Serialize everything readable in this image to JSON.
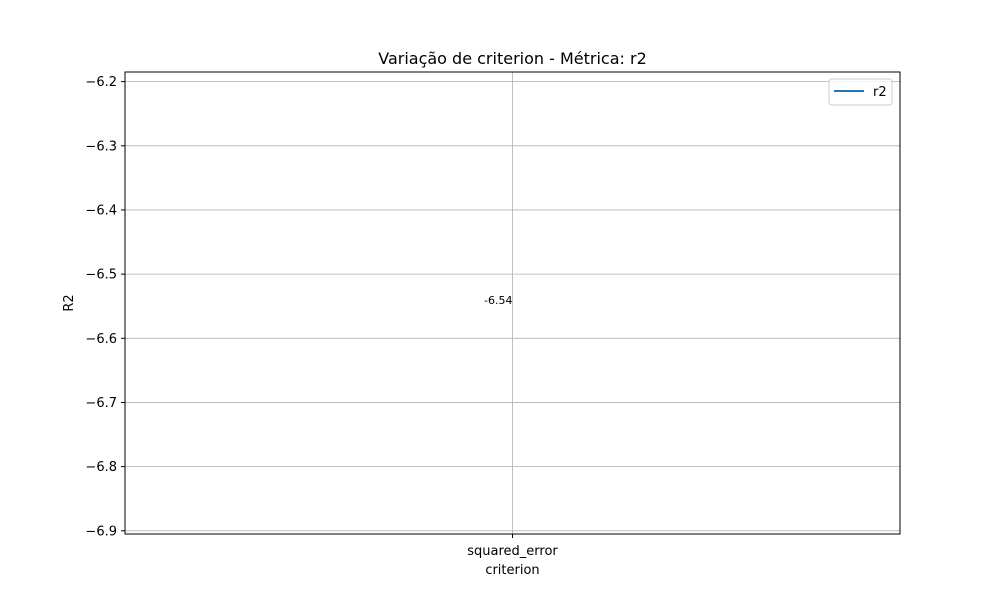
{
  "chart_data": {
    "type": "line",
    "title": "Variação de criterion - Métrica: r2",
    "xlabel": "criterion",
    "ylabel": "R2",
    "categories": [
      "squared_error"
    ],
    "series": [
      {
        "name": "r2",
        "values": [
          -6.54
        ],
        "color": "#1f77b4"
      }
    ],
    "data_labels": [
      "-6.54"
    ],
    "ylim": [
      -6.905,
      -6.185
    ],
    "yticks": [
      -6.9,
      -6.8,
      -6.7,
      -6.6,
      -6.5,
      -6.4,
      -6.3,
      -6.2
    ],
    "ytick_labels": [
      "−6.9",
      "−6.8",
      "−6.7",
      "−6.6",
      "−6.5",
      "−6.4",
      "−6.3",
      "−6.2"
    ],
    "grid": true,
    "legend_position": "top-right"
  }
}
